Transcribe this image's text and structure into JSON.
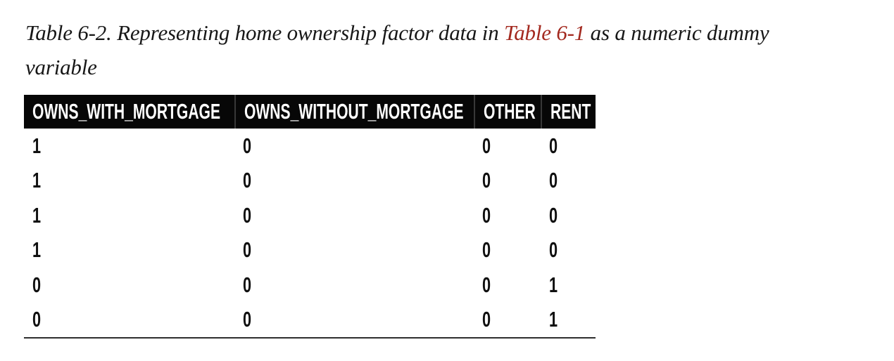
{
  "caption": {
    "line1_start": "Table 6-2. Representing home ownership factor data in ",
    "link_text": "Table 6-1",
    "line1_end": " as a numeric dummy",
    "line2": "variable"
  },
  "table": {
    "columns": [
      "OWNS_WITH_MORTGAGE",
      "OWNS_WITHOUT_MORTGAGE",
      "OTHER",
      "RENT"
    ],
    "rows": [
      [
        "1",
        "0",
        "0",
        "0"
      ],
      [
        "1",
        "0",
        "0",
        "0"
      ],
      [
        "1",
        "0",
        "0",
        "0"
      ],
      [
        "1",
        "0",
        "0",
        "0"
      ],
      [
        "0",
        "0",
        "0",
        "1"
      ],
      [
        "0",
        "0",
        "0",
        "1"
      ]
    ]
  },
  "colors": {
    "link_red": "#a3291f",
    "header_bg": "#070707",
    "header_text": "#ffffff",
    "body_text": "#101010",
    "bottom_rule": "#2e2e2e"
  }
}
